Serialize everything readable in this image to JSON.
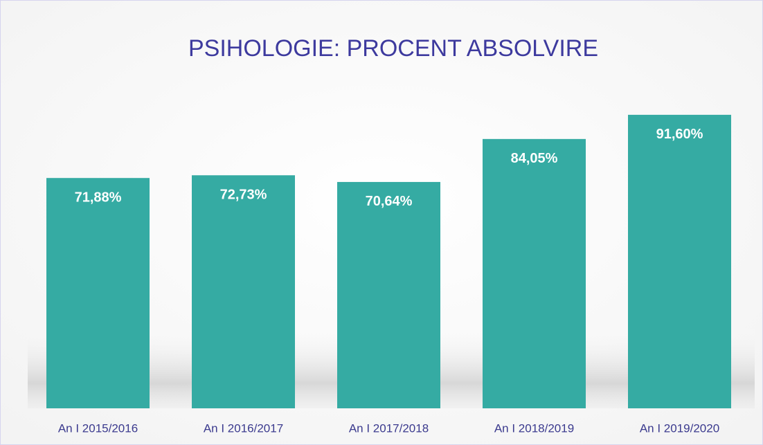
{
  "chart_data": {
    "type": "bar",
    "title": "PSIHOLOGIE: PROCENT ABSOLVIRE",
    "categories": [
      "An I 2015/2016",
      "An I 2016/2017",
      "An I 2017/2018",
      "An I 2018/2019",
      "An I 2019/2020"
    ],
    "values": [
      71.88,
      72.73,
      70.64,
      84.05,
      91.6
    ],
    "value_labels": [
      "71,88%",
      "72,73%",
      "70,64%",
      "84,05%",
      "91,60%"
    ],
    "color": "#35aba3"
  }
}
